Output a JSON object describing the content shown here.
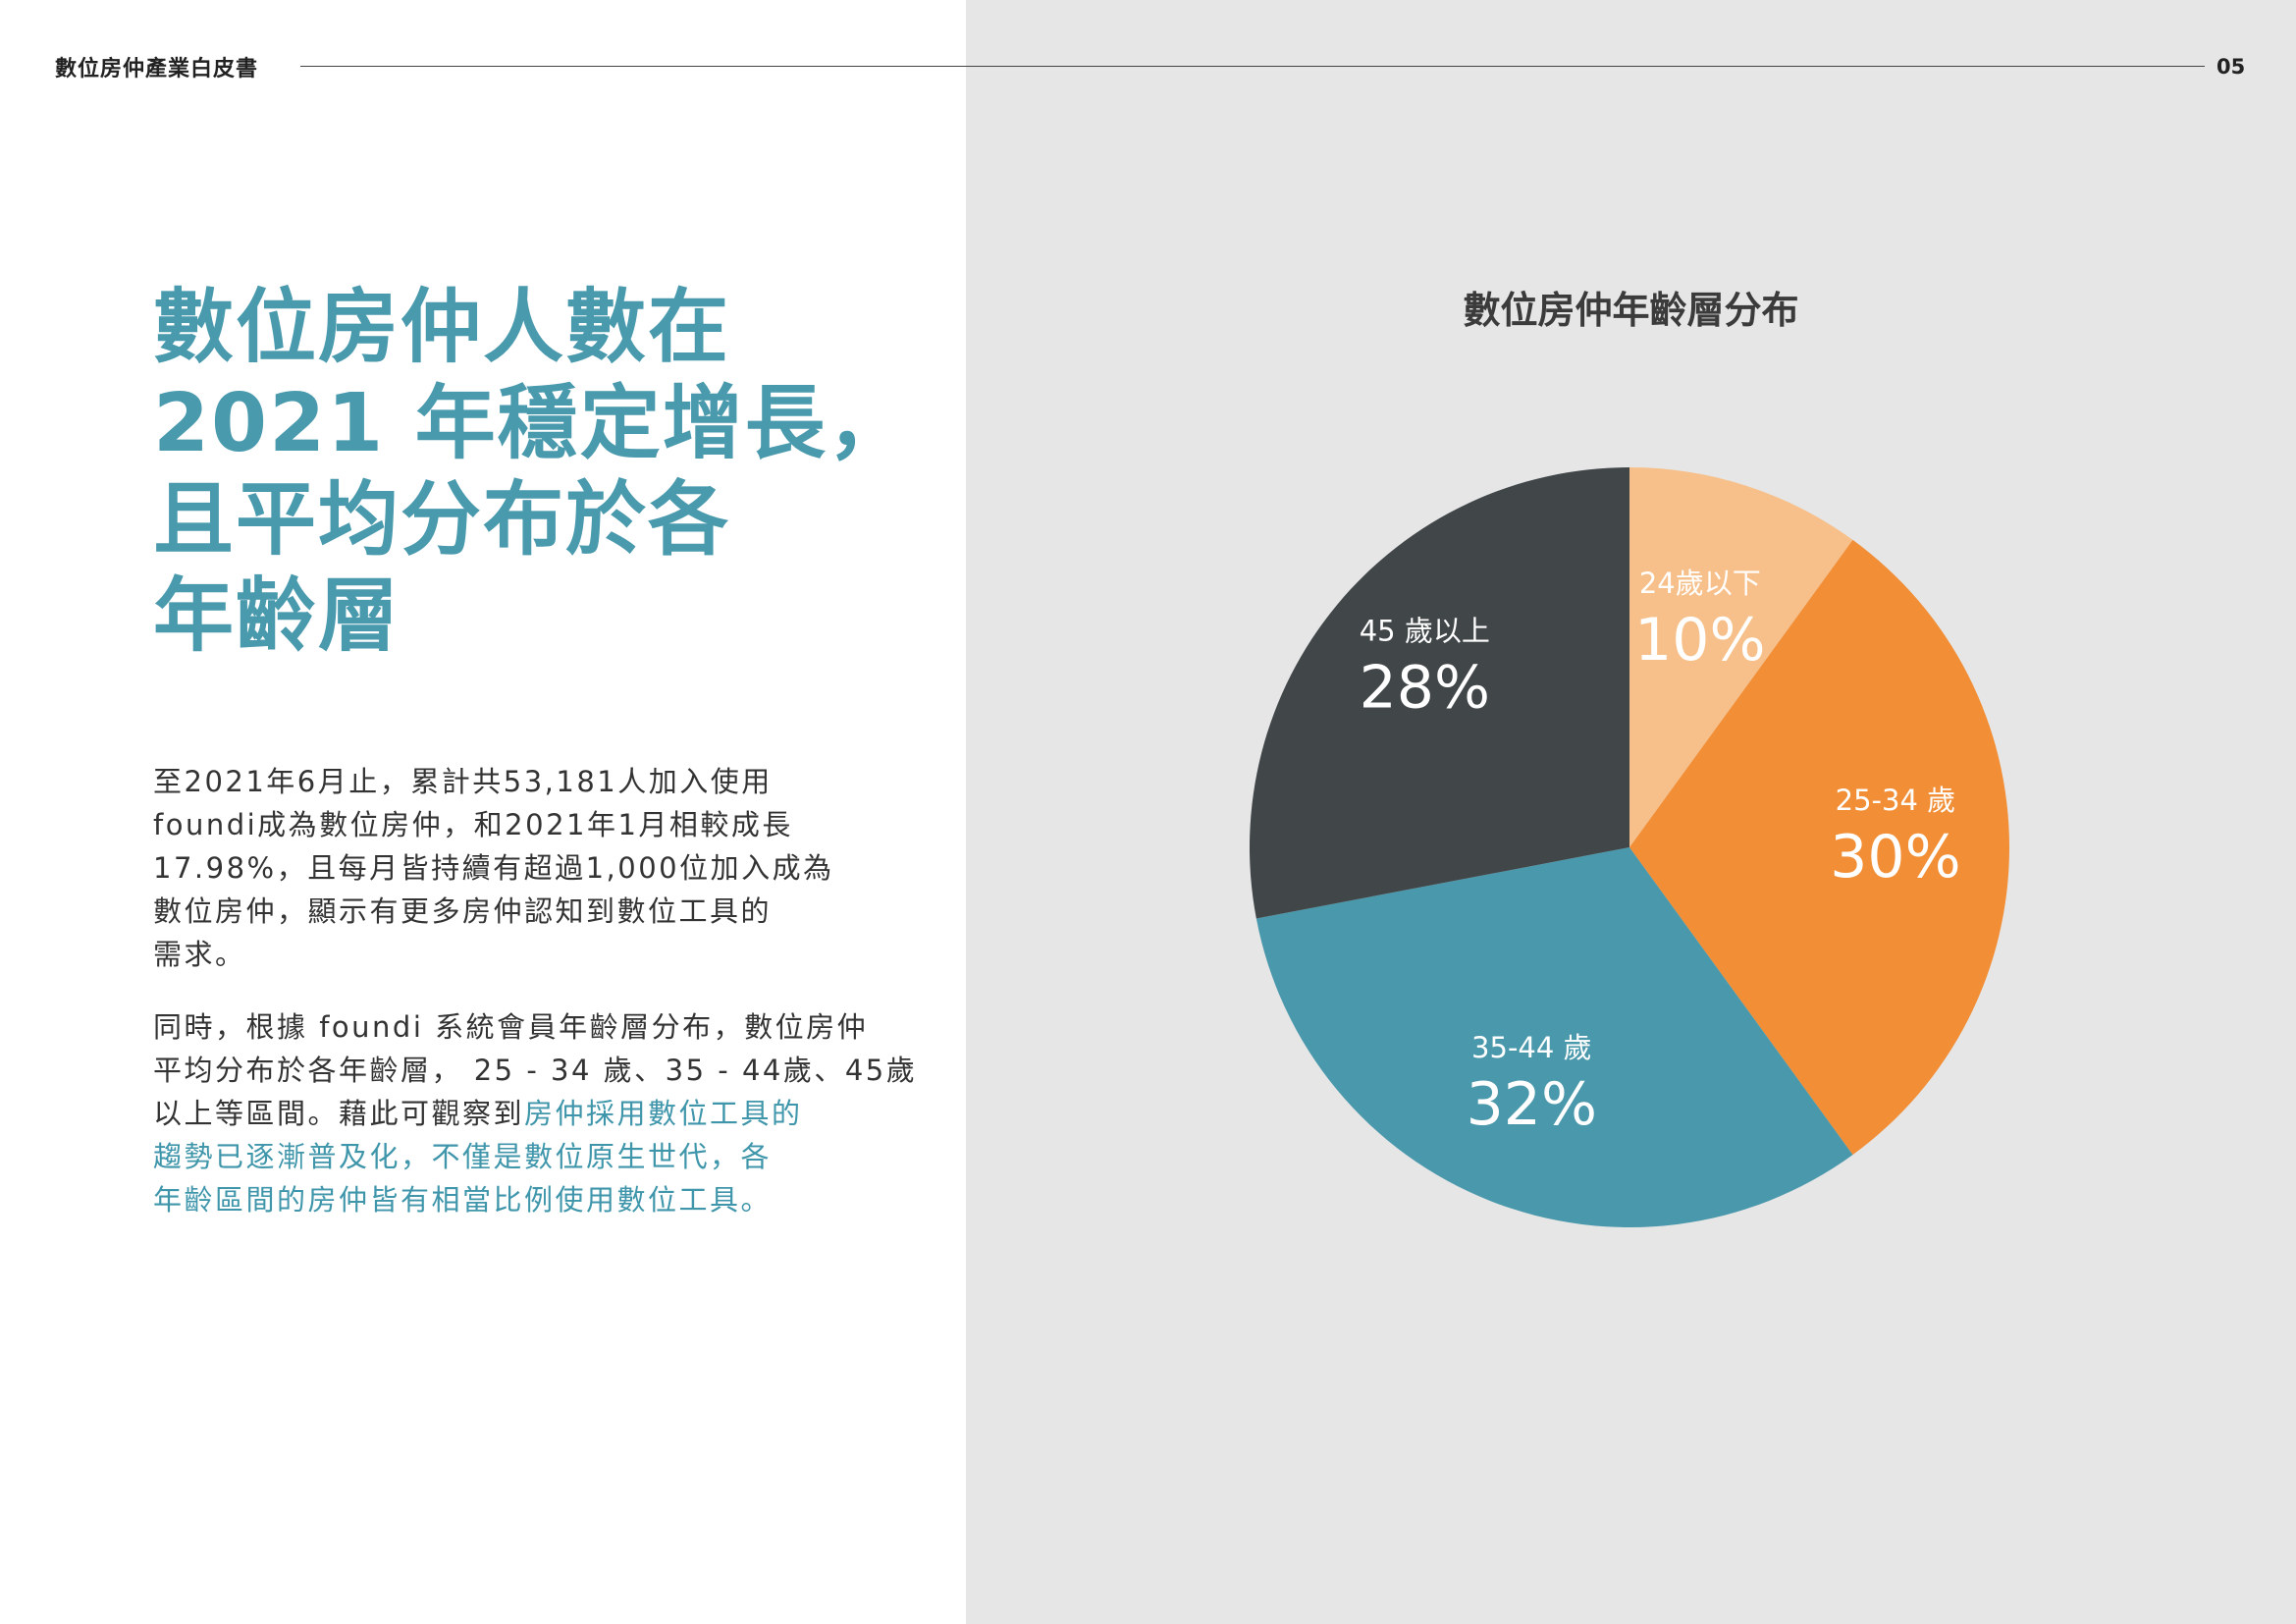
{
  "header": {
    "title": "數位房仲產業白皮書",
    "page_number": "05"
  },
  "headline": {
    "lines": [
      "數位房仲人數在",
      "2021 年穩定增長，",
      "且平均分布於各",
      "年齡層"
    ]
  },
  "paragraphs": {
    "p1": {
      "lines": [
        "至2021年6月止，累計共53,181人加入使用",
        "foundi成為數位房仲，和2021年1月相較成長",
        "17.98%，且每月皆持續有超過1,000位加入成為",
        "數位房仲，顯示有更多房仲認知到數位工具的",
        "需求。"
      ]
    },
    "p2": {
      "line1": "同時，根據 foundi 系統會員年齡層分布，數位房仲",
      "line2": "平均分布於各年齡層， 25 - 34 歲、35 - 44歲、45歲",
      "line3_plain": "以上等區間。藉此可觀察到",
      "line3_highlight": "房仲採用數位工具的",
      "line4": "趨勢已逐漸普及化，不僅是數位原生世代，各",
      "line5": "年齡區間的房仲皆有相當比例使用數位工具。"
    }
  },
  "colors": {
    "accent": "#4a9aae",
    "panel_bg": "#e6e6e6"
  },
  "chart_data": {
    "type": "pie",
    "title": "數位房仲年齡層分布",
    "start": "12 o'clock, clockwise",
    "legend": "none (labels on slices)",
    "slices": [
      {
        "category": "24歲以下",
        "label": "10%",
        "value": 10,
        "color": "#f7c08a"
      },
      {
        "category": "25-34 歲",
        "label": "30%",
        "value": 30,
        "color": "#f28e35"
      },
      {
        "category": "35-44 歲",
        "label": "32%",
        "value": 32,
        "color": "#4a98ac"
      },
      {
        "category": "45 歲以上",
        "label": "28%",
        "value": 28,
        "color": "#414649"
      }
    ]
  }
}
